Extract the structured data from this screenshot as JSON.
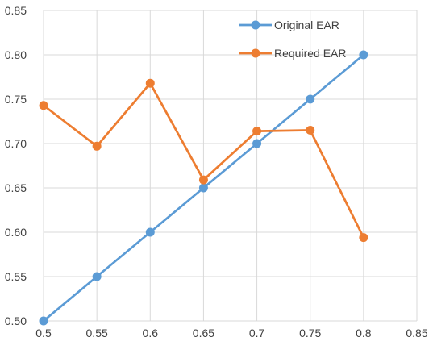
{
  "chart_data": {
    "type": "scatter",
    "title": "",
    "xlabel": "",
    "ylabel": "",
    "xlim": [
      0.5,
      0.85
    ],
    "ylim": [
      0.5,
      0.85
    ],
    "x_ticks": [
      "0.5",
      "0.55",
      "0.6",
      "0.65",
      "0.7",
      "0.75",
      "0.8",
      "0.85"
    ],
    "y_ticks": [
      "0.50",
      "0.55",
      "0.60",
      "0.65",
      "0.70",
      "0.75",
      "0.80",
      "0.85"
    ],
    "grid": true,
    "legend_position": "top-right inside plot",
    "series": [
      {
        "name": "Original EAR",
        "color": "#5b9bd5",
        "x": [
          0.5,
          0.55,
          0.6,
          0.65,
          0.7,
          0.75,
          0.8
        ],
        "y": [
          0.5,
          0.55,
          0.6,
          0.65,
          0.7,
          0.75,
          0.8
        ]
      },
      {
        "name": "Required EAR",
        "color": "#ed7d31",
        "x": [
          0.5,
          0.55,
          0.6,
          0.65,
          0.7,
          0.75,
          0.8
        ],
        "y": [
          0.743,
          0.697,
          0.768,
          0.659,
          0.714,
          0.715,
          0.594
        ]
      }
    ]
  }
}
